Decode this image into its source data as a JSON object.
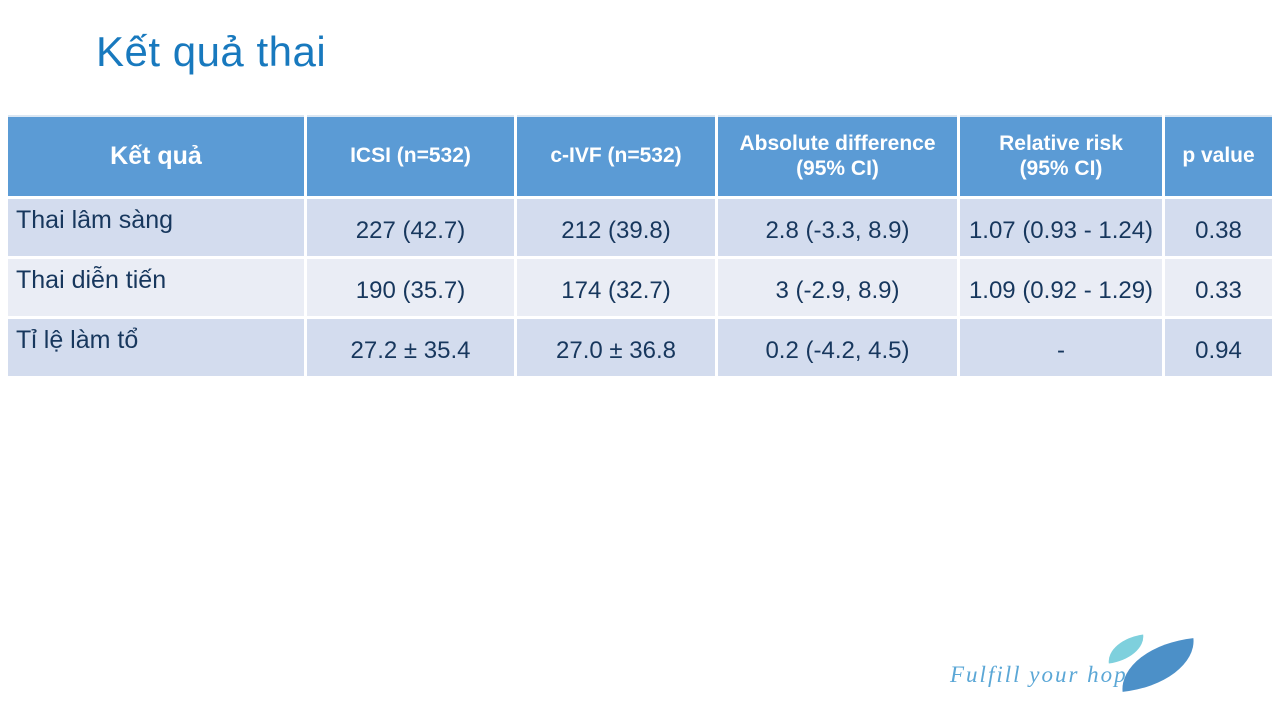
{
  "slide": {
    "title": "Kết quả thai"
  },
  "table": {
    "columns": [
      {
        "label": "Kết quả"
      },
      {
        "label": "ICSI (n=532)"
      },
      {
        "label": "c-IVF (n=532)"
      },
      {
        "label": "Absolute difference\n(95% CI)"
      },
      {
        "label": "Relative risk\n(95% CI)"
      },
      {
        "label": "p value"
      }
    ],
    "rows": [
      {
        "label": "Thai lâm sàng",
        "icsi": "227 (42.7)",
        "civf": "212 (39.8)",
        "abs_diff": "2.8 (-3.3, 8.9)",
        "rel_risk": "1.07 (0.93 - 1.24)",
        "p_value": "0.38"
      },
      {
        "label": "Thai diễn tiến",
        "icsi": "190 (35.7)",
        "civf": "174 (32.7)",
        "abs_diff": "3 (-2.9, 8.9)",
        "rel_risk": "1.09 (0.92 - 1.29)",
        "p_value": "0.33"
      },
      {
        "label": "Tỉ lệ làm tổ",
        "icsi": "27.2 ± 35.4",
        "civf": "27.0 ± 36.8",
        "abs_diff": "0.2 (-4.2, 4.5)",
        "rel_risk": "-",
        "p_value": "0.94"
      }
    ]
  },
  "footer": {
    "tagline": "Fulfill your hope"
  },
  "colors": {
    "title_blue": "#1879BE",
    "header_bg": "#5B9BD5",
    "band_odd": "#D3DCEE",
    "band_even": "#EAEDF5",
    "cell_text": "#17375D",
    "tagline_blue": "#5BA7D6",
    "leaf_teal": "#7ED0DD",
    "leaf_blue": "#4C90C8"
  }
}
